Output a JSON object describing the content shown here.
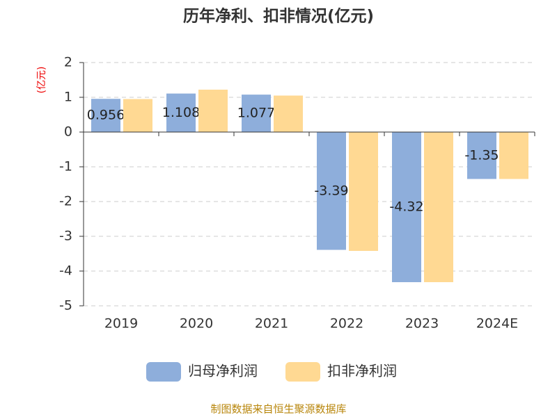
{
  "chart_data": {
    "type": "bar",
    "title": "历年净利、扣非情况(亿元)",
    "y_label": "(亿元)",
    "categories": [
      "2019",
      "2020",
      "2021",
      "2022",
      "2023",
      "2024E"
    ],
    "series": [
      {
        "name": "归母净利润",
        "color": "#8eaedb",
        "values": [
          0.956,
          1.108,
          1.077,
          -3.39,
          -4.32,
          -1.35
        ],
        "show_labels": true
      },
      {
        "name": "扣非净利润",
        "color": "#ffd993",
        "values": [
          0.95,
          1.22,
          1.05,
          -3.42,
          -4.32,
          -1.35
        ],
        "show_labels": false
      }
    ],
    "ylim": [
      -5,
      2
    ],
    "yticks": [
      2,
      1,
      0,
      -1,
      -2,
      -3,
      -4,
      -5
    ],
    "grid": true,
    "legend": "bottom",
    "source": "制图数据来自恒生聚源数据库"
  }
}
